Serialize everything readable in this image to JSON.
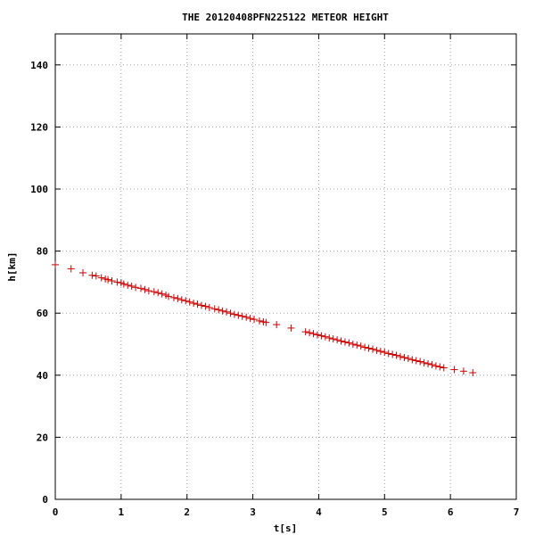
{
  "chart_data": {
    "type": "scatter",
    "title": "THE 20120408PFN225122 METEOR HEIGHT",
    "xlabel": "t[s]",
    "ylabel": "h[km]",
    "xlim": [
      0,
      7
    ],
    "ylim": [
      0,
      150
    ],
    "xticks": [
      "0",
      "1",
      "2",
      "3",
      "4",
      "5",
      "6",
      "7"
    ],
    "yticks": [
      "0",
      "20",
      "40",
      "60",
      "80",
      "100",
      "120",
      "140"
    ],
    "grid": true,
    "marker": "plus",
    "color": "#cc0000",
    "series": [
      {
        "x": [
          0.0,
          0.24,
          0.42,
          0.56,
          0.62,
          0.7,
          0.76,
          0.8,
          0.86,
          0.94,
          1.0,
          1.04,
          1.1,
          1.16,
          1.22,
          1.3,
          1.36,
          1.42,
          1.5,
          1.56,
          1.62,
          1.68,
          1.72,
          1.8,
          1.86,
          1.92,
          1.98,
          2.04,
          2.1,
          2.16,
          2.22,
          2.28,
          2.34,
          2.42,
          2.48,
          2.54,
          2.6,
          2.66,
          2.72,
          2.78,
          2.84,
          2.9,
          2.96,
          3.02,
          3.1,
          3.16,
          3.2,
          3.36,
          3.58,
          3.8,
          3.86,
          3.92,
          3.98,
          4.04,
          4.1,
          4.16,
          4.22,
          4.28,
          4.34,
          4.4,
          4.46,
          4.52,
          4.58,
          4.64,
          4.7,
          4.76,
          4.82,
          4.88,
          4.94,
          5.0,
          5.06,
          5.12,
          5.18,
          5.24,
          5.3,
          5.36,
          5.42,
          5.48,
          5.54,
          5.6,
          5.66,
          5.72,
          5.78,
          5.84,
          5.9,
          6.06,
          6.2,
          6.34
        ],
        "y": [
          75.6,
          74.3,
          73.0,
          72.2,
          72.0,
          71.4,
          71.0,
          70.8,
          70.4,
          70.0,
          69.8,
          69.4,
          69.0,
          68.7,
          68.3,
          68.0,
          67.6,
          67.2,
          66.9,
          66.6,
          66.2,
          65.8,
          65.4,
          65.0,
          64.7,
          64.3,
          64.0,
          63.6,
          63.2,
          62.9,
          62.5,
          62.2,
          61.8,
          61.4,
          61.1,
          60.7,
          60.4,
          60.0,
          59.6,
          59.3,
          59.0,
          58.7,
          58.3,
          58.0,
          57.5,
          57.2,
          57.0,
          56.3,
          55.2,
          54.0,
          53.7,
          53.4,
          53.0,
          52.7,
          52.4,
          52.0,
          51.7,
          51.4,
          51.0,
          50.7,
          50.4,
          50.0,
          49.7,
          49.4,
          49.0,
          48.7,
          48.4,
          48.0,
          47.7,
          47.4,
          47.0,
          46.7,
          46.4,
          46.0,
          45.7,
          45.4,
          45.0,
          44.7,
          44.4,
          44.0,
          43.7,
          43.4,
          43.0,
          42.7,
          42.4,
          41.8,
          41.3,
          40.8
        ]
      }
    ]
  }
}
